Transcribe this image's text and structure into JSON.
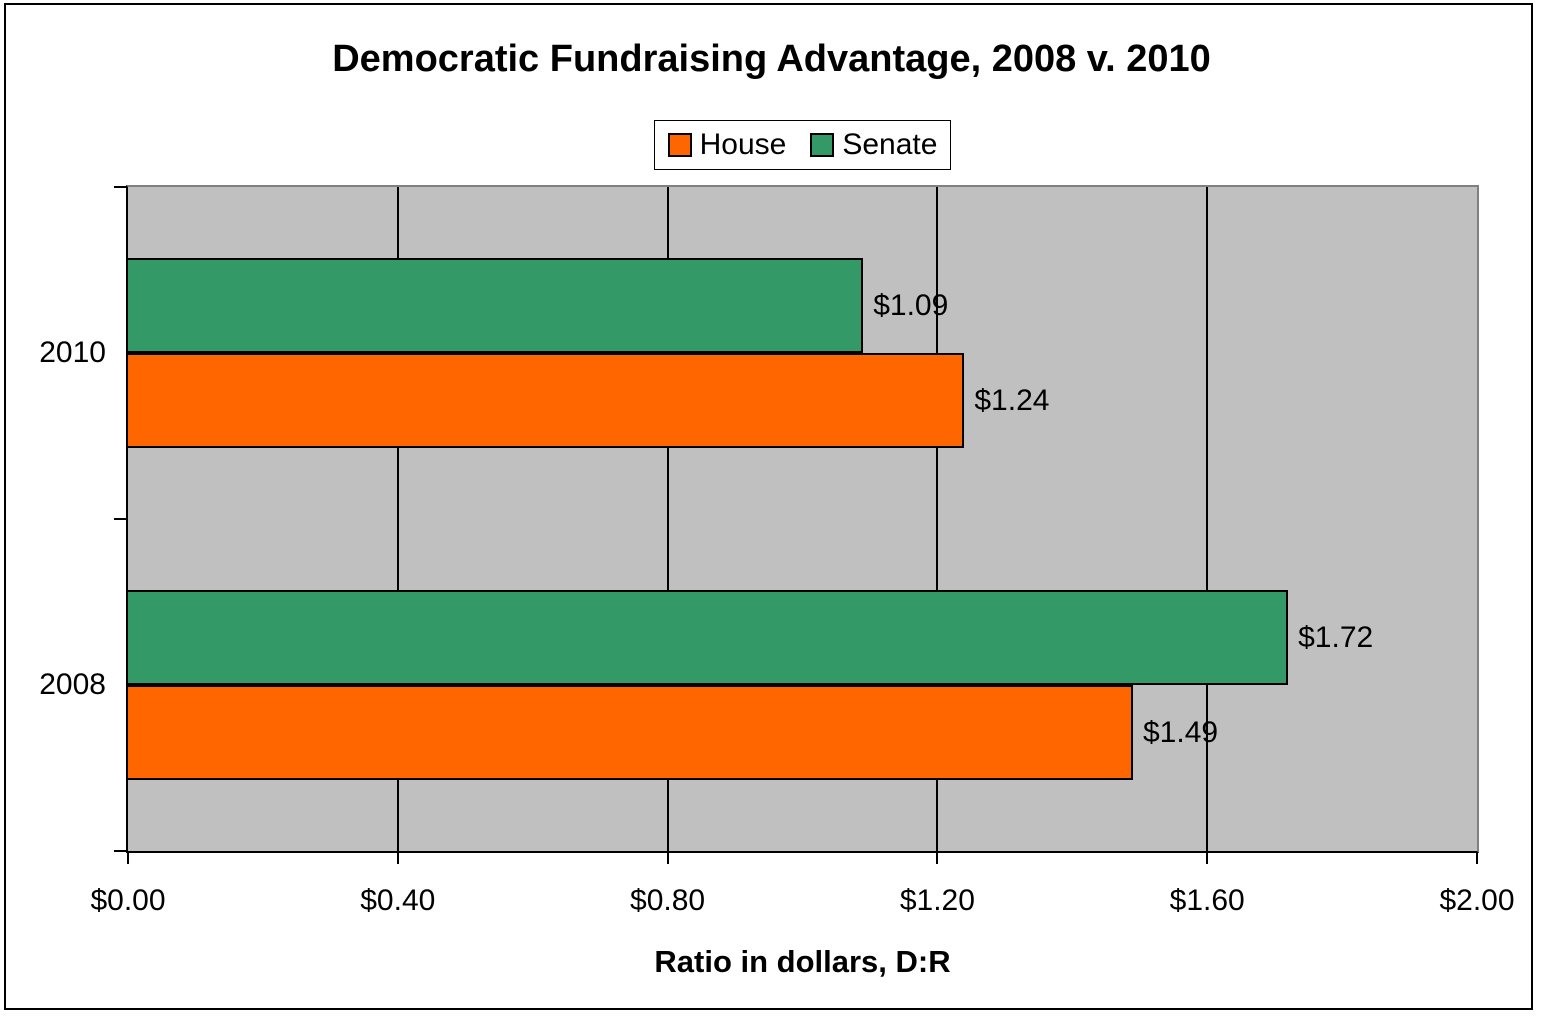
{
  "chart_data": {
    "type": "bar",
    "orientation": "horizontal",
    "title": "Democratic Fundraising Advantage, 2008 v. 2010",
    "xlabel": "Ratio in dollars, D:R",
    "xlim": [
      0,
      2
    ],
    "x_tick_labels": [
      "$0.00",
      "$0.40",
      "$0.80",
      "$1.20",
      "$1.60",
      "$2.00"
    ],
    "categories": [
      "2010",
      "2008"
    ],
    "series": [
      {
        "name": "House",
        "color": "#FF6600",
        "values": [
          1.24,
          1.49
        ],
        "value_labels": [
          "$1.24",
          "$1.49"
        ]
      },
      {
        "name": "Senate",
        "color": "#339966",
        "values": [
          1.09,
          1.72
        ],
        "value_labels": [
          "$1.09",
          "$1.72"
        ]
      }
    ],
    "legend": {
      "position": "top",
      "entries": [
        "House",
        "Senate"
      ]
    },
    "grid": true,
    "colors": {
      "plot_background": "#C0C0C0",
      "gridline": "#000000",
      "axis": "#000000",
      "bar_border": "#000000",
      "text": "#000000",
      "background": "#FFFFFF"
    }
  }
}
